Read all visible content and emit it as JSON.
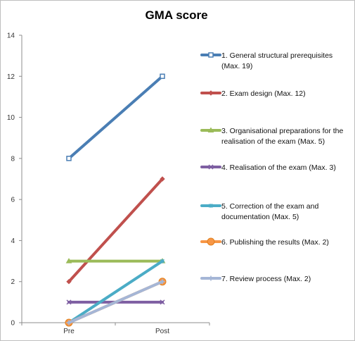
{
  "chart_data": {
    "type": "line",
    "title": "GMA score",
    "xlabel": "",
    "ylabel": "",
    "categories": [
      "Pre",
      "Post"
    ],
    "ylim": [
      0,
      14
    ],
    "yticks": [
      0,
      2,
      4,
      6,
      8,
      10,
      12,
      14
    ],
    "grid": false,
    "legend_position": "right",
    "series": [
      {
        "name_lines": [
          "1. General structural prerequisites",
          "(Max. 19)"
        ],
        "values": [
          8,
          12
        ],
        "color": "#4a7eb4",
        "marker": "square"
      },
      {
        "name_lines": [
          "2. Exam design (Max. 12)"
        ],
        "values": [
          2,
          7
        ],
        "color": "#c0504d",
        "marker": "diamond"
      },
      {
        "name_lines": [
          "3. Organisational preparations for the",
          "realisation of the exam (Max. 5)"
        ],
        "values": [
          3,
          3
        ],
        "color": "#9bbb59",
        "marker": "triangle"
      },
      {
        "name_lines": [
          "4. Realisation of the exam (Max. 3)"
        ],
        "values": [
          1,
          1
        ],
        "color": "#7e5fa2",
        "marker": "x"
      },
      {
        "name_lines": [
          "5. Correction of the exam and",
          "documentation (Max. 5)"
        ],
        "values": [
          0,
          3
        ],
        "color": "#4bacc6",
        "marker": "star"
      },
      {
        "name_lines": [
          "6. Publishing the results (Max. 2)"
        ],
        "values": [
          0,
          2
        ],
        "color": "#f79646",
        "marker": "circle"
      },
      {
        "name_lines": [
          "7. Review process (Max. 2)"
        ],
        "values": [
          0,
          2
        ],
        "color": "#a5b6d6",
        "marker": "plus"
      }
    ]
  }
}
